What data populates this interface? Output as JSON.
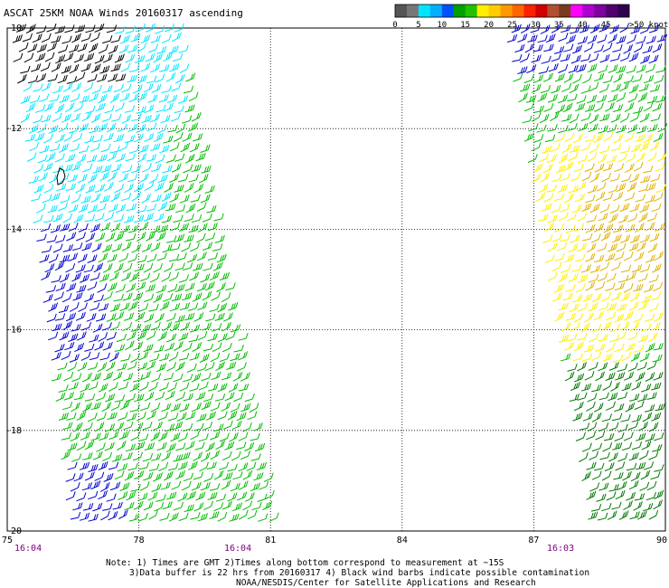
{
  "title": "ASCAT 25KM NOAA Winds 20160317 ascending",
  "legend": {
    "ticks": [
      "0",
      "5",
      "10",
      "15",
      "20",
      "25",
      "30",
      "35",
      "40",
      "45",
      ">50 knots"
    ],
    "colors": [
      "#555555",
      "#777777",
      "#00e5ff",
      "#00b0ff",
      "#0050ff",
      "#00a000",
      "#22c000",
      "#ffee00",
      "#ffcc00",
      "#ff9900",
      "#ff6600",
      "#ff2000",
      "#d00000",
      "#b05030",
      "#7a3a20",
      "#ff00ff",
      "#b000d0",
      "#8000a0",
      "#500070",
      "#300050"
    ]
  },
  "map": {
    "lat_labels": [
      "-10",
      "-12",
      "-14",
      "-16",
      "-18",
      "-20"
    ],
    "lon_labels": [
      "75",
      "78",
      "81",
      "84",
      "87",
      "90"
    ],
    "time_labels": [
      "16:04",
      "16:04",
      "16:03"
    ],
    "lat_range": [
      -20,
      -10
    ],
    "lon_range": [
      75,
      90
    ],
    "barb_colors": {
      "contaminated": "#000000",
      "knots_10_15": "#00e5ff",
      "knots_15_20": "#0000cc",
      "knots_20_25": "#00bb00",
      "knots_20_25_dark": "#007700",
      "knots_25_30": "#ffee00",
      "knots_30_35": "#e0b000"
    }
  },
  "notes": {
    "line1": "Note: 1) Times are GMT 2)Times along bottom correspond to measurement at ~15S",
    "line2": "3)Data buffer is 22 hrs from 20160317 4) Black wind barbs indicate possible contamination",
    "line3": "NOAA/NESDIS/Center for Satellite Applications and Research"
  }
}
